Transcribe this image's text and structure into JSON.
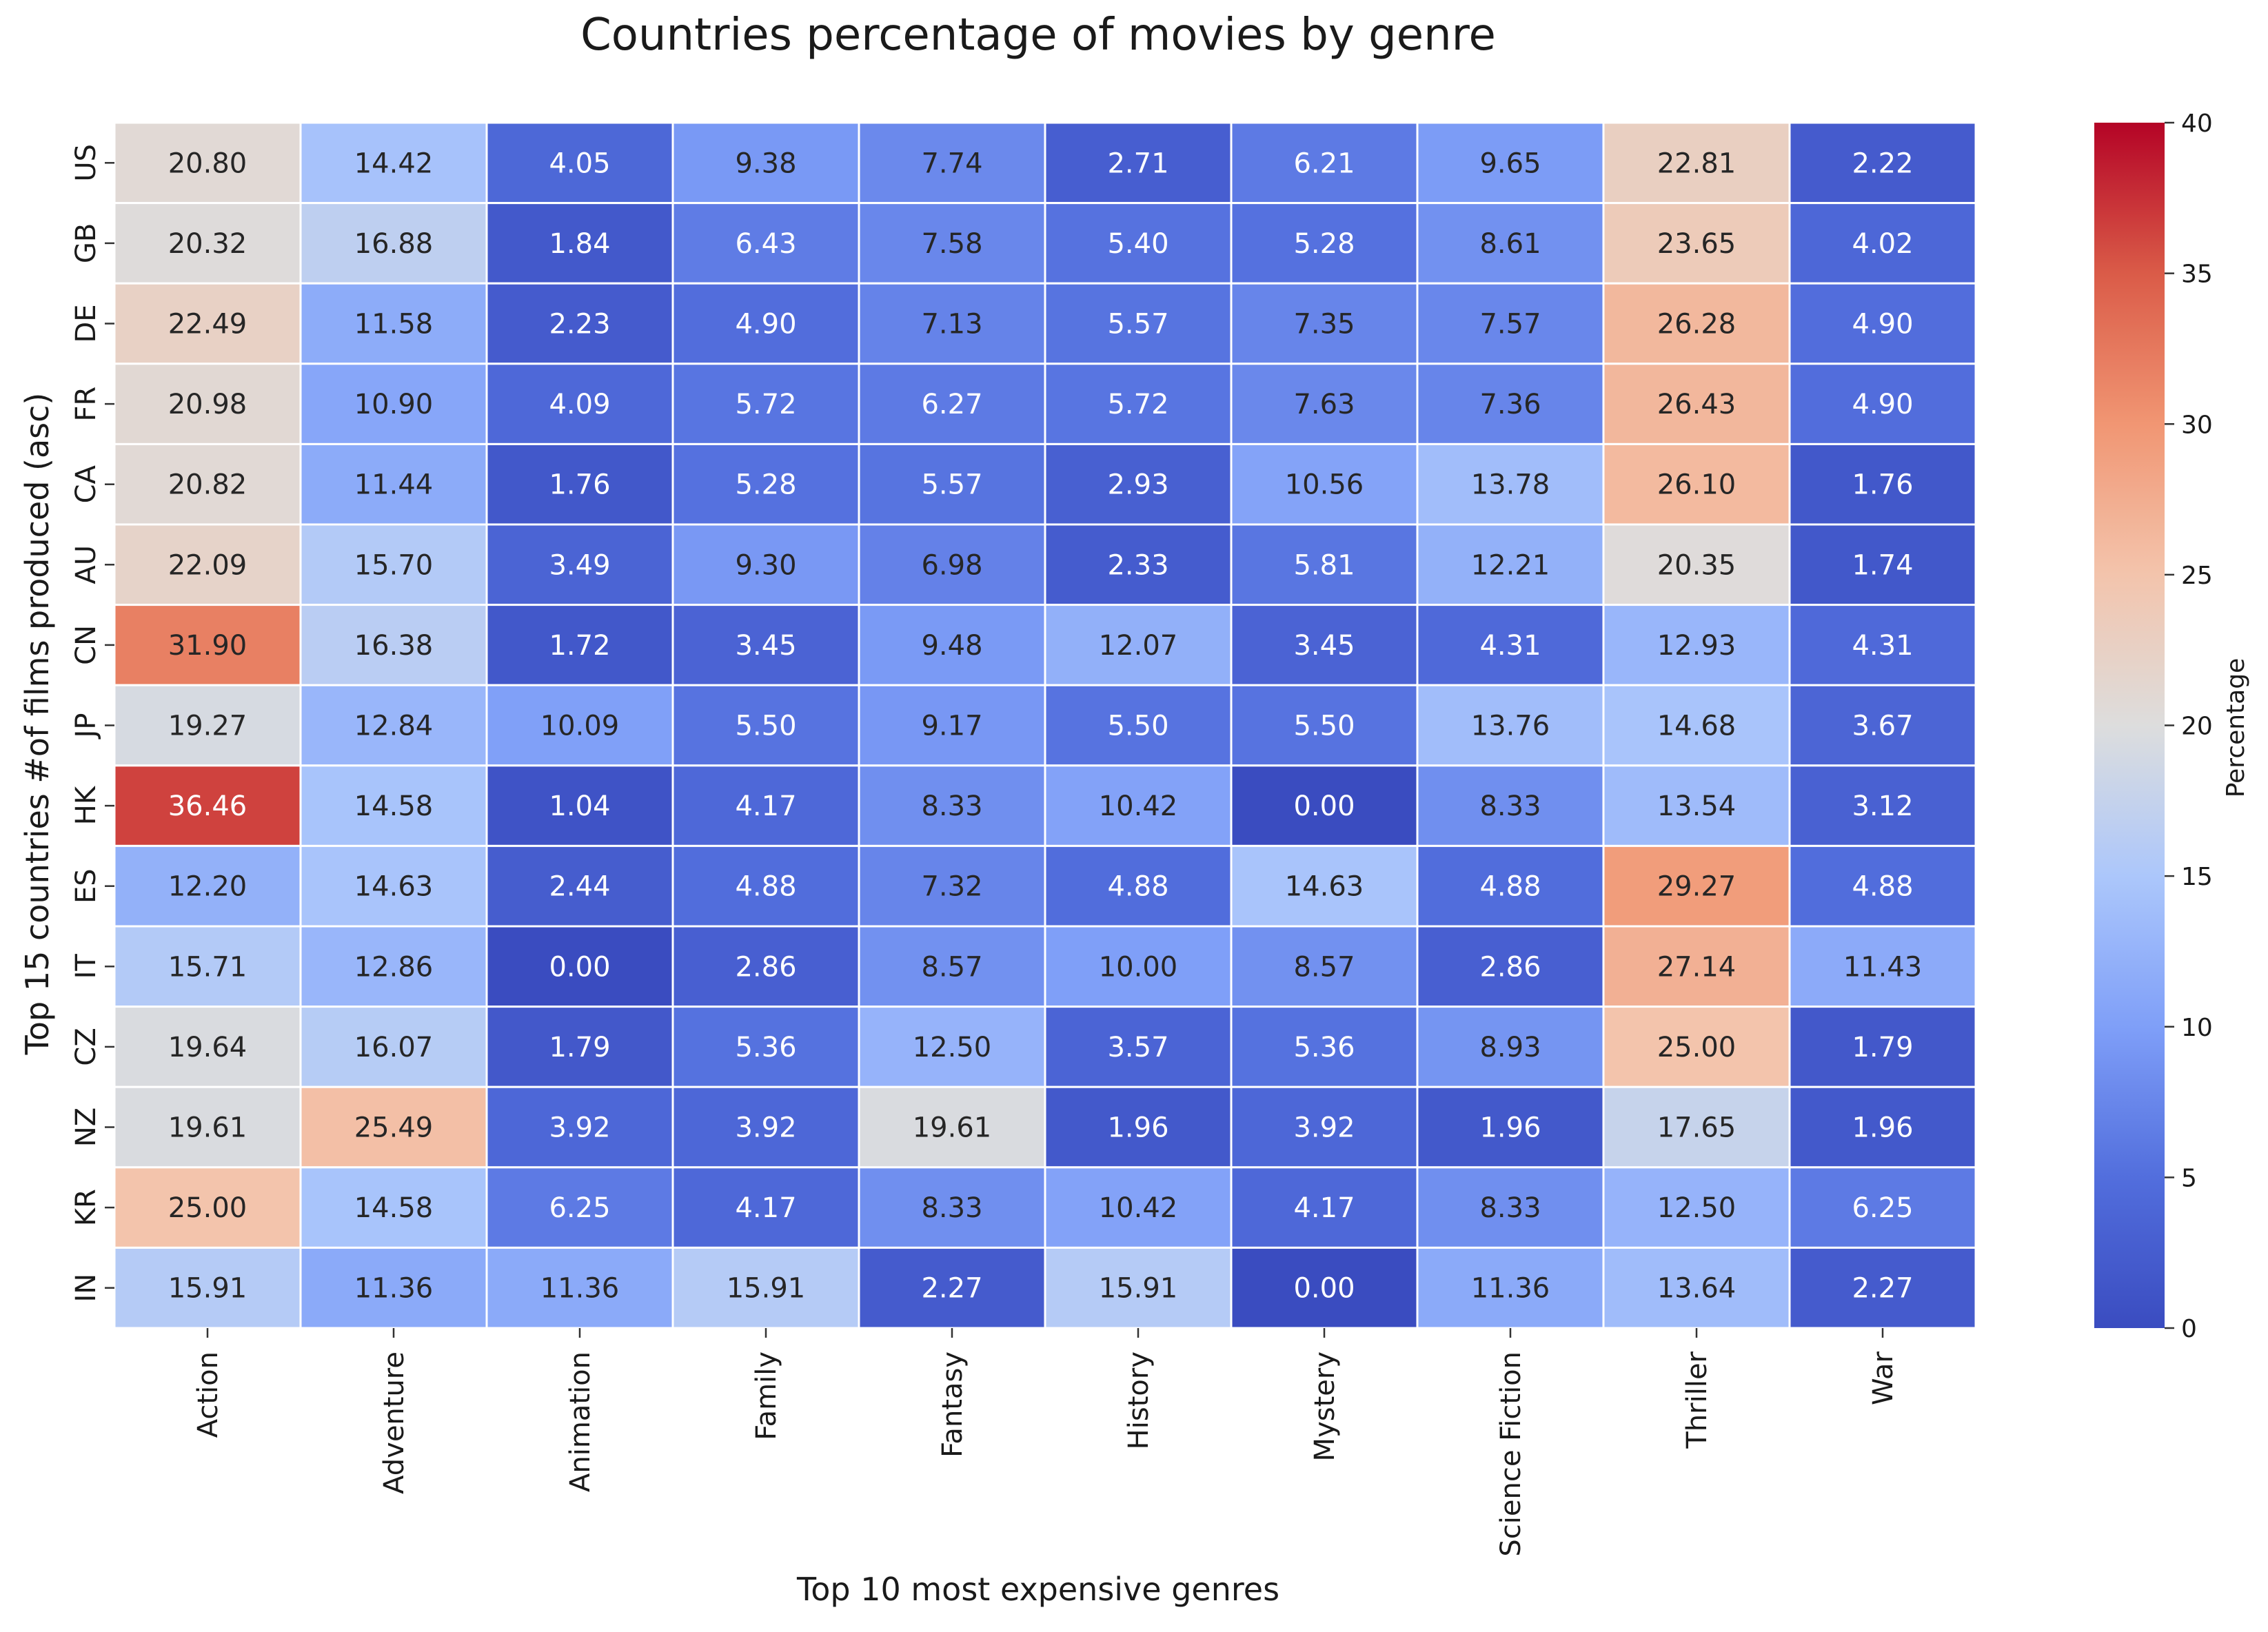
{
  "chart_data": {
    "type": "heatmap",
    "title": "Countries percentage of movies by genre",
    "xlabel": "Top 10 most expensive genres",
    "ylabel": "Top 15 countries #of films produced (asc)",
    "colorbar_label": "Percentage",
    "colormap": "coolwarm",
    "vmin": 0,
    "vmax": 40,
    "colorbar_ticks": [
      0,
      5,
      10,
      15,
      20,
      25,
      30,
      35,
      40
    ],
    "columns": [
      "Action",
      "Adventure",
      "Animation",
      "Family",
      "Fantasy",
      "History",
      "Mystery",
      "Science Fiction",
      "Thriller",
      "War"
    ],
    "rows": [
      "US",
      "GB",
      "DE",
      "FR",
      "CA",
      "AU",
      "CN",
      "JP",
      "HK",
      "ES",
      "IT",
      "CZ",
      "NZ",
      "KR",
      "IN"
    ],
    "values": [
      [
        20.8,
        14.42,
        4.05,
        9.38,
        7.74,
        2.71,
        6.21,
        9.65,
        22.81,
        2.22
      ],
      [
        20.32,
        16.88,
        1.84,
        6.43,
        7.58,
        5.4,
        5.28,
        8.61,
        23.65,
        4.02
      ],
      [
        22.49,
        11.58,
        2.23,
        4.9,
        7.13,
        5.57,
        7.35,
        7.57,
        26.28,
        4.9
      ],
      [
        20.98,
        10.9,
        4.09,
        5.72,
        6.27,
        5.72,
        7.63,
        7.36,
        26.43,
        4.9
      ],
      [
        20.82,
        11.44,
        1.76,
        5.28,
        5.57,
        2.93,
        10.56,
        13.78,
        26.1,
        1.76
      ],
      [
        22.09,
        15.7,
        3.49,
        9.3,
        6.98,
        2.33,
        5.81,
        12.21,
        20.35,
        1.74
      ],
      [
        31.9,
        16.38,
        1.72,
        3.45,
        9.48,
        12.07,
        3.45,
        4.31,
        12.93,
        4.31
      ],
      [
        19.27,
        12.84,
        10.09,
        5.5,
        9.17,
        5.5,
        5.5,
        13.76,
        14.68,
        3.67
      ],
      [
        36.46,
        14.58,
        1.04,
        4.17,
        8.33,
        10.42,
        0.0,
        8.33,
        13.54,
        3.12
      ],
      [
        12.2,
        14.63,
        2.44,
        4.88,
        7.32,
        4.88,
        14.63,
        4.88,
        29.27,
        4.88
      ],
      [
        15.71,
        12.86,
        0.0,
        2.86,
        8.57,
        10.0,
        8.57,
        2.86,
        27.14,
        11.43
      ],
      [
        19.64,
        16.07,
        1.79,
        5.36,
        12.5,
        3.57,
        5.36,
        8.93,
        25.0,
        1.79
      ],
      [
        19.61,
        25.49,
        3.92,
        3.92,
        19.61,
        1.96,
        3.92,
        1.96,
        17.65,
        1.96
      ],
      [
        25.0,
        14.58,
        6.25,
        4.17,
        8.33,
        10.42,
        4.17,
        8.33,
        12.5,
        6.25
      ],
      [
        15.91,
        11.36,
        11.36,
        15.91,
        2.27,
        15.91,
        0.0,
        11.36,
        13.64,
        2.27
      ]
    ]
  }
}
